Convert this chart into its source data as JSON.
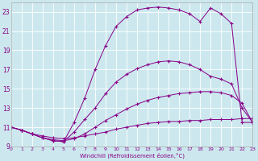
{
  "xlabel": "Windchill (Refroidissement éolien,°C)",
  "bg_color": "#cce8ee",
  "line_color": "#880088",
  "xlim": [
    0,
    23
  ],
  "ylim": [
    9,
    24
  ],
  "xticks": [
    0,
    1,
    2,
    3,
    4,
    5,
    6,
    7,
    8,
    9,
    10,
    11,
    12,
    13,
    14,
    15,
    16,
    17,
    18,
    19,
    20,
    21,
    22,
    23
  ],
  "yticks": [
    9,
    11,
    13,
    15,
    17,
    19,
    21,
    23
  ],
  "series": [
    {
      "x": [
        0,
        1,
        2,
        3,
        4,
        5,
        6,
        7,
        8,
        9,
        10,
        11,
        12,
        13,
        14,
        15,
        16,
        17,
        18,
        19,
        20,
        21,
        22,
        23
      ],
      "y": [
        11.0,
        10.7,
        10.3,
        10.1,
        9.9,
        9.8,
        9.9,
        10.1,
        10.3,
        10.5,
        10.8,
        11.0,
        11.2,
        11.4,
        11.5,
        11.6,
        11.6,
        11.7,
        11.7,
        11.8,
        11.8,
        11.8,
        11.9,
        11.9
      ]
    },
    {
      "x": [
        0,
        1,
        2,
        3,
        4,
        5,
        6,
        7,
        8,
        9,
        10,
        11,
        12,
        13,
        14,
        15,
        16,
        17,
        18,
        19,
        20,
        21,
        22,
        23
      ],
      "y": [
        11.0,
        10.7,
        10.3,
        9.9,
        9.7,
        9.6,
        9.8,
        10.3,
        11.0,
        11.7,
        12.3,
        12.9,
        13.4,
        13.8,
        14.1,
        14.3,
        14.5,
        14.6,
        14.7,
        14.7,
        14.6,
        14.3,
        13.5,
        11.5
      ]
    },
    {
      "x": [
        0,
        1,
        2,
        3,
        4,
        5,
        6,
        7,
        8,
        9,
        10,
        11,
        12,
        13,
        14,
        15,
        16,
        17,
        18,
        19,
        20,
        21,
        22,
        23
      ],
      "y": [
        11.0,
        10.7,
        10.3,
        9.9,
        9.6,
        9.5,
        10.5,
        11.8,
        13.0,
        14.5,
        15.7,
        16.5,
        17.1,
        17.5,
        17.8,
        17.9,
        17.8,
        17.5,
        17.0,
        16.3,
        16.0,
        15.5,
        13.0,
        11.5
      ]
    },
    {
      "x": [
        0,
        1,
        2,
        3,
        4,
        5,
        6,
        7,
        8,
        9,
        10,
        11,
        12,
        13,
        14,
        15,
        16,
        17,
        18,
        19,
        20,
        21,
        22,
        23
      ],
      "y": [
        11.0,
        10.7,
        10.3,
        9.9,
        9.6,
        9.5,
        11.5,
        14.0,
        17.0,
        19.5,
        21.5,
        22.5,
        23.2,
        23.4,
        23.5,
        23.4,
        23.2,
        22.8,
        22.0,
        23.4,
        22.8,
        21.8,
        11.5,
        11.5
      ]
    }
  ]
}
